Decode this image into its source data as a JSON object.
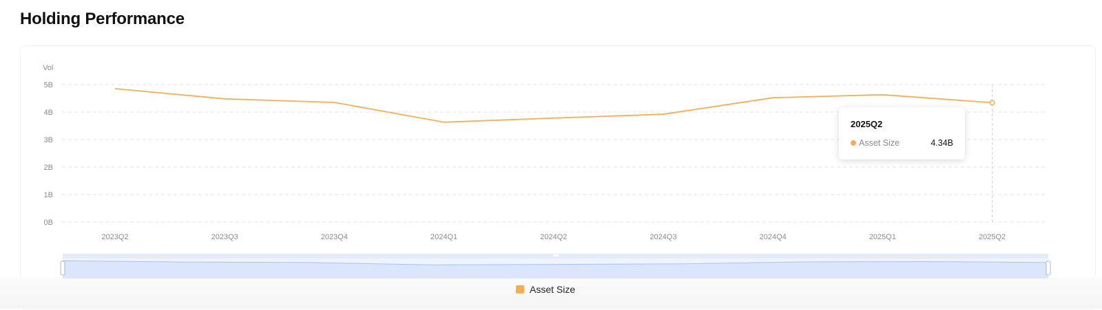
{
  "page": {
    "title": "Holding Performance"
  },
  "colors": {
    "series": "#f7ad55",
    "grid": "#e3e3e3",
    "slider_fill": "#dbe6fd",
    "slider_line": "#a9c1f5",
    "slider_top": "#e5ebf7"
  },
  "chart_data": {
    "type": "line",
    "title": "",
    "ylabel": "Vol",
    "xlabel": "",
    "categories": [
      "2023Q2",
      "2023Q3",
      "2023Q4",
      "2024Q1",
      "2024Q2",
      "2024Q3",
      "2024Q4",
      "2025Q1",
      "2025Q2"
    ],
    "series": [
      {
        "name": "Asset Size",
        "values": [
          4.85,
          4.48,
          4.35,
          3.63,
          3.78,
          3.92,
          4.52,
          4.63,
          4.34
        ]
      }
    ],
    "ylim": [
      0,
      5
    ],
    "yticks": [
      "0B",
      "1B",
      "2B",
      "3B",
      "4B",
      "5B"
    ],
    "grid": true,
    "legend_position": "bottom-center",
    "highlighted_index": 8
  },
  "tooltip": {
    "title": "2025Q2",
    "series_label": "Asset Size",
    "value": "4.34B"
  },
  "legend": {
    "label": "Asset Size"
  }
}
